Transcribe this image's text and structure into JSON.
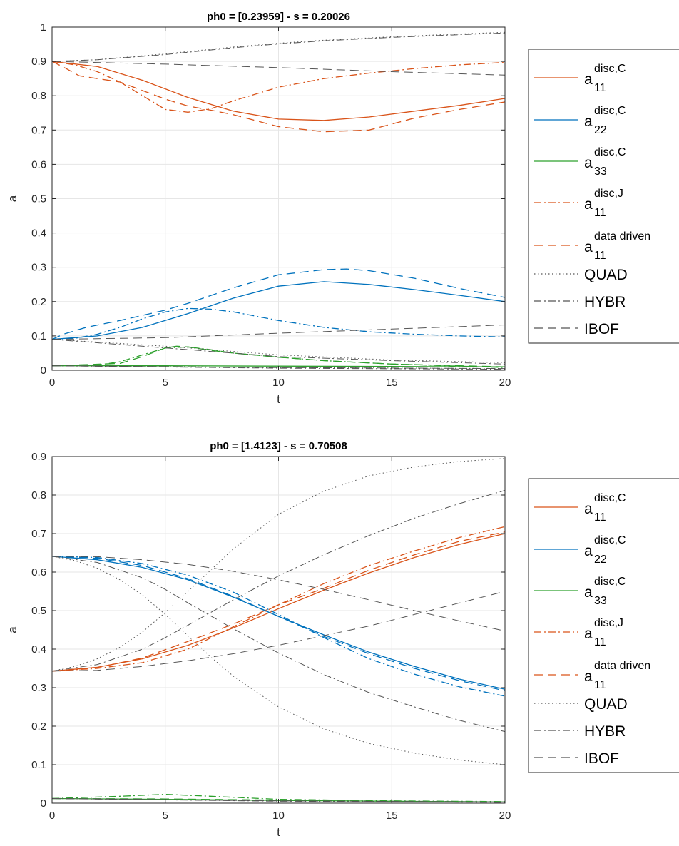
{
  "chart_data": [
    {
      "type": "line",
      "title": "ph0 = [0.23959] - s = 0.20026",
      "xlabel": "t",
      "ylabel": "a",
      "xlim": [
        0,
        20
      ],
      "ylim": [
        0,
        1
      ],
      "xticks": [
        "0",
        "5",
        "10",
        "15",
        "20"
      ],
      "yticks": [
        "0",
        "0.1",
        "0.2",
        "0.3",
        "0.4",
        "0.5",
        "0.6",
        "0.7",
        "0.8",
        "0.9",
        "1"
      ],
      "grid": true,
      "legend_position": "right",
      "colors": {
        "a11": "#D95319",
        "a22": "#0072BD",
        "a33": "#2CA02C",
        "closures": "#555555"
      },
      "series": [
        {
          "name": "a11 disc,C",
          "color": "#D95319",
          "style": "solid",
          "x": [
            0,
            2,
            4,
            6,
            8,
            10,
            12,
            14,
            16,
            18,
            20
          ],
          "y": [
            0.9,
            0.885,
            0.845,
            0.795,
            0.755,
            0.732,
            0.728,
            0.738,
            0.755,
            0.772,
            0.792
          ]
        },
        {
          "name": "a22 disc,C",
          "color": "#0072BD",
          "style": "solid",
          "x": [
            0,
            2,
            4,
            6,
            8,
            10,
            12,
            14,
            16,
            18,
            20
          ],
          "y": [
            0.09,
            0.1,
            0.125,
            0.165,
            0.21,
            0.245,
            0.258,
            0.25,
            0.235,
            0.218,
            0.2
          ]
        },
        {
          "name": "a33 disc,C",
          "color": "#2CA02C",
          "style": "solid",
          "x": [
            0,
            5,
            10,
            15,
            20
          ],
          "y": [
            0.013,
            0.013,
            0.012,
            0.011,
            0.01
          ]
        },
        {
          "name": "a11 disc,J",
          "color": "#D95319",
          "style": "dashdot",
          "x": [
            0,
            1,
            2,
            3,
            4,
            5,
            6,
            7,
            8,
            10,
            12,
            14,
            16,
            18,
            20
          ],
          "y": [
            0.9,
            0.89,
            0.87,
            0.84,
            0.8,
            0.76,
            0.752,
            0.762,
            0.785,
            0.825,
            0.85,
            0.866,
            0.879,
            0.89,
            0.897
          ]
        },
        {
          "name": "a22 disc,J",
          "color": "#0072BD",
          "style": "dashdot",
          "x": [
            0,
            1,
            2,
            3,
            4,
            5,
            6,
            7,
            8,
            10,
            12,
            14,
            16,
            18,
            20
          ],
          "y": [
            0.09,
            0.093,
            0.105,
            0.125,
            0.15,
            0.17,
            0.18,
            0.178,
            0.17,
            0.145,
            0.125,
            0.112,
            0.105,
            0.1,
            0.097
          ]
        },
        {
          "name": "a33 disc,J",
          "color": "#2CA02C",
          "style": "dashdot",
          "x": [
            0,
            2,
            3,
            4,
            5,
            6,
            7,
            8,
            10,
            12,
            15,
            20
          ],
          "y": [
            0.013,
            0.015,
            0.025,
            0.045,
            0.065,
            0.068,
            0.06,
            0.05,
            0.038,
            0.028,
            0.018,
            0.008
          ]
        },
        {
          "name": "a11 data driven",
          "color": "#D95319",
          "style": "dashed",
          "x": [
            0,
            0.6,
            1.2,
            2,
            3,
            4,
            5,
            6,
            7,
            8,
            10,
            12,
            14,
            16,
            18,
            20
          ],
          "y": [
            0.9,
            0.88,
            0.858,
            0.85,
            0.84,
            0.815,
            0.79,
            0.77,
            0.758,
            0.745,
            0.71,
            0.695,
            0.7,
            0.735,
            0.76,
            0.782
          ]
        },
        {
          "name": "a22 data driven",
          "color": "#0072BD",
          "style": "dashed",
          "x": [
            0,
            0.5,
            1.5,
            3,
            5,
            6,
            8,
            10,
            12,
            13,
            14,
            16,
            18,
            20
          ],
          "y": [
            0.09,
            0.105,
            0.125,
            0.145,
            0.175,
            0.195,
            0.24,
            0.278,
            0.293,
            0.295,
            0.29,
            0.268,
            0.238,
            0.212
          ]
        },
        {
          "name": "a33 data driven",
          "color": "#2CA02C",
          "style": "dashed",
          "x": [
            0,
            3,
            4,
            5,
            5.5,
            6,
            7,
            8,
            10,
            12,
            15,
            20
          ],
          "y": [
            0.013,
            0.02,
            0.04,
            0.065,
            0.07,
            0.068,
            0.058,
            0.05,
            0.038,
            0.028,
            0.018,
            0.01
          ]
        },
        {
          "name": "QUAD a11",
          "color": "#555555",
          "style": "dotted",
          "x": [
            0,
            2,
            5,
            8,
            10,
            12,
            15,
            18,
            20
          ],
          "y": [
            0.9,
            0.905,
            0.922,
            0.942,
            0.953,
            0.962,
            0.972,
            0.98,
            0.985
          ]
        },
        {
          "name": "QUAD a22",
          "color": "#555555",
          "style": "dotted",
          "x": [
            0,
            5,
            10,
            15,
            20
          ],
          "y": [
            0.09,
            0.07,
            0.045,
            0.03,
            0.022
          ]
        },
        {
          "name": "QUAD a33",
          "color": "#555555",
          "style": "dotted",
          "x": [
            0,
            10,
            20
          ],
          "y": [
            0.013,
            0.008,
            0.005
          ]
        },
        {
          "name": "HYBR a11",
          "color": "#555555",
          "style": "dashdot",
          "x": [
            0,
            2,
            5,
            8,
            10,
            12,
            15,
            18,
            20
          ],
          "y": [
            0.9,
            0.905,
            0.92,
            0.94,
            0.951,
            0.96,
            0.97,
            0.978,
            0.983
          ]
        },
        {
          "name": "HYBR a22",
          "color": "#555555",
          "style": "dashdot",
          "x": [
            0,
            5,
            10,
            15,
            20
          ],
          "y": [
            0.09,
            0.065,
            0.04,
            0.028,
            0.018
          ]
        },
        {
          "name": "HYBR a33",
          "color": "#555555",
          "style": "dashdot",
          "x": [
            0,
            10,
            20
          ],
          "y": [
            0.013,
            0.006,
            0.003
          ]
        },
        {
          "name": "IBOF a11",
          "color": "#555555",
          "style": "dashed",
          "x": [
            0,
            5,
            10,
            15,
            20
          ],
          "y": [
            0.9,
            0.892,
            0.882,
            0.87,
            0.86
          ]
        },
        {
          "name": "IBOF a22",
          "color": "#555555",
          "style": "dashed",
          "x": [
            0,
            5,
            10,
            15,
            20
          ],
          "y": [
            0.09,
            0.095,
            0.108,
            0.12,
            0.132
          ]
        },
        {
          "name": "IBOF a33",
          "color": "#555555",
          "style": "dashed",
          "x": [
            0,
            10,
            20
          ],
          "y": [
            0.013,
            0.008,
            0.005
          ]
        }
      ]
    },
    {
      "type": "line",
      "title": "ph0 = [1.4123] - s = 0.70508",
      "xlabel": "t",
      "ylabel": "a",
      "xlim": [
        0,
        20
      ],
      "ylim": [
        0,
        0.9
      ],
      "xticks": [
        "0",
        "5",
        "10",
        "15",
        "20"
      ],
      "yticks": [
        "0",
        "0.1",
        "0.2",
        "0.3",
        "0.4",
        "0.5",
        "0.6",
        "0.7",
        "0.8",
        "0.9"
      ],
      "grid": true,
      "legend_position": "right",
      "colors": {
        "a11": "#D95319",
        "a22": "#0072BD",
        "a33": "#2CA02C",
        "closures": "#555555"
      },
      "series": [
        {
          "name": "a11 disc,C",
          "color": "#D95319",
          "style": "solid",
          "x": [
            0,
            2,
            4,
            6,
            8,
            10,
            12,
            14,
            16,
            18,
            20
          ],
          "y": [
            0.343,
            0.353,
            0.375,
            0.41,
            0.455,
            0.505,
            0.553,
            0.598,
            0.638,
            0.672,
            0.7
          ]
        },
        {
          "name": "a22 disc,C",
          "color": "#0072BD",
          "style": "solid",
          "x": [
            0,
            2,
            4,
            6,
            8,
            10,
            12,
            14,
            16,
            18,
            20
          ],
          "y": [
            0.641,
            0.632,
            0.612,
            0.58,
            0.535,
            0.485,
            0.437,
            0.392,
            0.355,
            0.322,
            0.296
          ]
        },
        {
          "name": "a33 disc,C",
          "color": "#2CA02C",
          "style": "solid",
          "x": [
            0,
            5,
            10,
            15,
            20
          ],
          "y": [
            0.012,
            0.01,
            0.007,
            0.005,
            0.003
          ]
        },
        {
          "name": "a11 disc,J",
          "color": "#D95319",
          "style": "dashdot",
          "x": [
            0,
            2,
            4,
            6,
            8,
            10,
            12,
            14,
            16,
            18,
            20
          ],
          "y": [
            0.343,
            0.35,
            0.365,
            0.4,
            0.458,
            0.515,
            0.57,
            0.617,
            0.655,
            0.69,
            0.718
          ]
        },
        {
          "name": "a22 disc,J",
          "color": "#0072BD",
          "style": "dashdot",
          "x": [
            0,
            2,
            4,
            6,
            8,
            10,
            12,
            14,
            16,
            18,
            20
          ],
          "y": [
            0.641,
            0.638,
            0.622,
            0.592,
            0.548,
            0.49,
            0.43,
            0.375,
            0.335,
            0.302,
            0.278
          ]
        },
        {
          "name": "a33 disc,J",
          "color": "#2CA02C",
          "style": "dashdot",
          "x": [
            0,
            3,
            5,
            7,
            10,
            15,
            20
          ],
          "y": [
            0.012,
            0.018,
            0.023,
            0.018,
            0.01,
            0.006,
            0.004
          ]
        },
        {
          "name": "a11 data driven",
          "color": "#D95319",
          "style": "dashed",
          "x": [
            0,
            2,
            4,
            6,
            8,
            10,
            12,
            14,
            16,
            18,
            20
          ],
          "y": [
            0.343,
            0.352,
            0.377,
            0.42,
            0.465,
            0.515,
            0.558,
            0.605,
            0.645,
            0.68,
            0.704
          ]
        },
        {
          "name": "a22 data driven",
          "color": "#0072BD",
          "style": "dashed",
          "x": [
            0,
            2,
            4,
            6,
            8,
            10,
            12,
            14,
            16,
            18,
            20
          ],
          "y": [
            0.641,
            0.636,
            0.617,
            0.583,
            0.537,
            0.485,
            0.433,
            0.388,
            0.35,
            0.318,
            0.292
          ]
        },
        {
          "name": "a33 data driven",
          "color": "#2CA02C",
          "style": "dashed",
          "x": [
            0,
            5,
            10,
            15,
            20
          ],
          "y": [
            0.012,
            0.011,
            0.008,
            0.005,
            0.003
          ]
        },
        {
          "name": "QUAD a11",
          "color": "#555555",
          "style": "dotted",
          "x": [
            0,
            1,
            2,
            3,
            4,
            5,
            6,
            7,
            8,
            10,
            12,
            14,
            16,
            18,
            20
          ],
          "y": [
            0.343,
            0.355,
            0.375,
            0.405,
            0.445,
            0.495,
            0.55,
            0.605,
            0.66,
            0.75,
            0.81,
            0.85,
            0.873,
            0.887,
            0.895
          ]
        },
        {
          "name": "QUAD a22",
          "color": "#555555",
          "style": "dotted",
          "x": [
            0,
            1,
            2,
            3,
            4,
            5,
            6,
            7,
            8,
            10,
            12,
            14,
            16,
            18,
            20
          ],
          "y": [
            0.641,
            0.63,
            0.61,
            0.58,
            0.54,
            0.49,
            0.435,
            0.38,
            0.33,
            0.25,
            0.193,
            0.155,
            0.13,
            0.112,
            0.1
          ]
        },
        {
          "name": "QUAD a33",
          "color": "#555555",
          "style": "dotted",
          "x": [
            0,
            10,
            20
          ],
          "y": [
            0.012,
            0.006,
            0.003
          ]
        },
        {
          "name": "HYBR a11",
          "color": "#555555",
          "style": "dashdot",
          "x": [
            0,
            2,
            4,
            5,
            6,
            8,
            10,
            12,
            14,
            16,
            18,
            20
          ],
          "y": [
            0.343,
            0.36,
            0.4,
            0.43,
            0.462,
            0.528,
            0.59,
            0.645,
            0.695,
            0.74,
            0.778,
            0.812
          ]
        },
        {
          "name": "HYBR a22",
          "color": "#555555",
          "style": "dashdot",
          "x": [
            0,
            2,
            4,
            5,
            6,
            8,
            10,
            12,
            14,
            16,
            18,
            20
          ],
          "y": [
            0.641,
            0.625,
            0.585,
            0.555,
            0.52,
            0.453,
            0.39,
            0.334,
            0.287,
            0.25,
            0.215,
            0.186
          ]
        },
        {
          "name": "HYBR a33",
          "color": "#555555",
          "style": "dashdot",
          "x": [
            0,
            10,
            20
          ],
          "y": [
            0.012,
            0.005,
            0.002
          ]
        },
        {
          "name": "IBOF a11",
          "color": "#555555",
          "style": "dashed",
          "x": [
            0,
            2,
            4,
            6,
            8,
            10,
            12,
            14,
            16,
            18,
            20
          ],
          "y": [
            0.343,
            0.345,
            0.355,
            0.37,
            0.388,
            0.41,
            0.435,
            0.46,
            0.49,
            0.52,
            0.55
          ]
        },
        {
          "name": "IBOF a22",
          "color": "#555555",
          "style": "dashed",
          "x": [
            0,
            2,
            4,
            6,
            8,
            10,
            12,
            14,
            16,
            18,
            20
          ],
          "y": [
            0.641,
            0.64,
            0.632,
            0.62,
            0.602,
            0.58,
            0.555,
            0.528,
            0.5,
            0.473,
            0.447
          ]
        },
        {
          "name": "IBOF a33",
          "color": "#555555",
          "style": "dashed",
          "x": [
            0,
            10,
            20
          ],
          "y": [
            0.012,
            0.006,
            0.003
          ]
        }
      ]
    }
  ],
  "legend": [
    {
      "base": "a",
      "sup": "disc,C",
      "sub": "11",
      "color": "#D95319",
      "style": "solid"
    },
    {
      "base": "a",
      "sup": "disc,C",
      "sub": "22",
      "color": "#0072BD",
      "style": "solid"
    },
    {
      "base": "a",
      "sup": "disc,C",
      "sub": "33",
      "color": "#2CA02C",
      "style": "solid"
    },
    {
      "base": "a",
      "sup": "disc,J",
      "sub": "11",
      "color": "#D95319",
      "style": "dashdot"
    },
    {
      "base": "a",
      "sup": "data driven",
      "sub": "11",
      "color": "#D95319",
      "style": "dashed"
    },
    {
      "label": "QUAD",
      "color": "#555555",
      "style": "dotted"
    },
    {
      "label": "HYBR",
      "color": "#555555",
      "style": "dashdot"
    },
    {
      "label": "IBOF",
      "color": "#555555",
      "style": "dashed"
    }
  ]
}
